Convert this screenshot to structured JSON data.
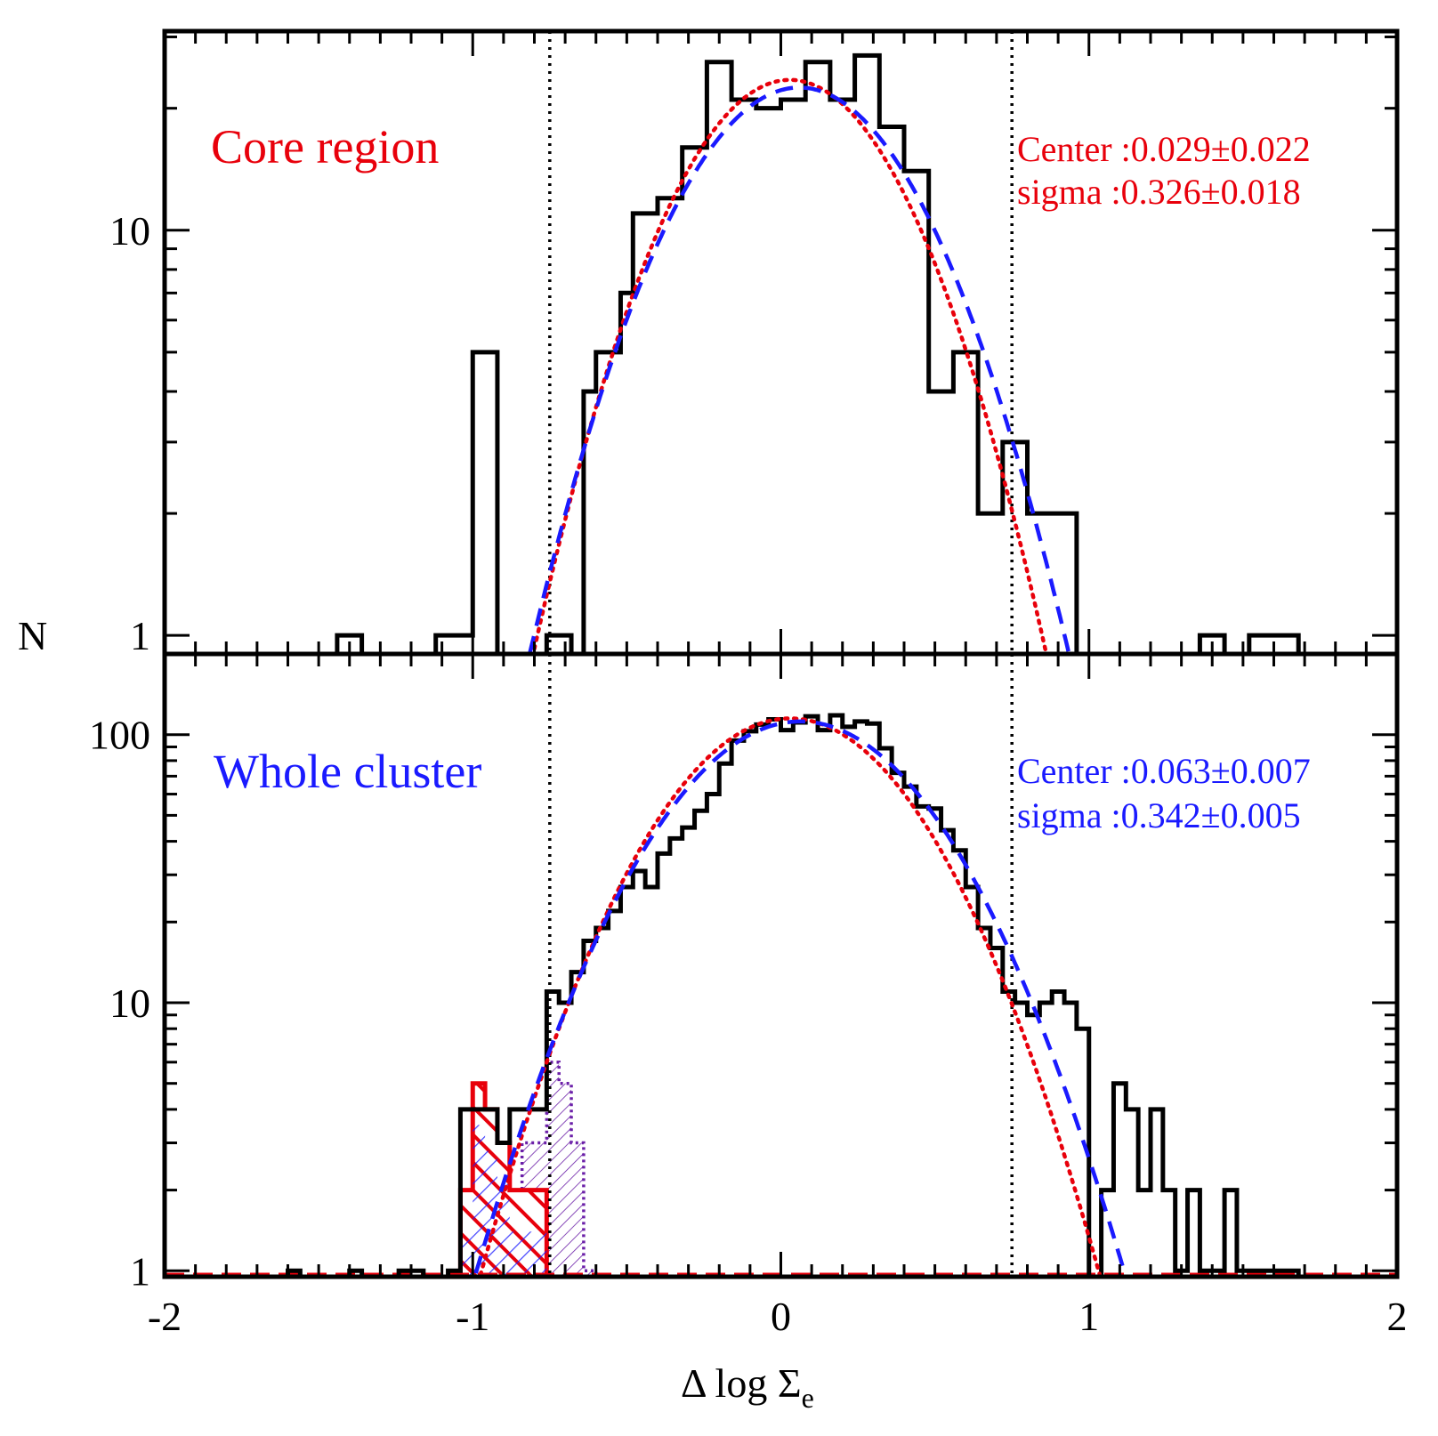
{
  "chart_data": [
    {
      "type": "histogram",
      "panel": "top",
      "title_label": "Core region",
      "title_color": "#e8000b",
      "stats": {
        "center_text": "Center :0.029±0.022",
        "sigma_text": "sigma :0.326±0.018",
        "color": "#e8000b"
      },
      "yscale": "log",
      "ylim": [
        0.9,
        31
      ],
      "yticks": [
        1,
        10
      ],
      "yticklabels": [
        "1",
        "10"
      ],
      "xlim": [
        -2,
        2
      ],
      "bin_width": 0.08,
      "vlines": [
        -0.75,
        0.75
      ],
      "histogram": {
        "edges": [
          -1.44,
          -1.36,
          -1.12,
          -1.0,
          -0.92,
          -0.76,
          -0.68,
          -0.64,
          -0.6,
          -0.56,
          -0.52,
          -0.48,
          -0.4,
          -0.32,
          -0.24,
          -0.16,
          -0.08,
          0.0,
          0.08,
          0.16,
          0.24,
          0.32,
          0.4,
          0.48,
          0.56,
          0.64,
          0.72,
          0.8,
          0.96
        ],
        "counts": [
          1,
          0,
          1,
          5,
          0,
          1,
          0,
          4,
          5,
          5,
          7,
          11,
          12,
          16,
          26,
          21,
          20,
          21,
          26,
          21,
          27,
          18,
          14,
          4,
          5,
          2,
          3,
          2
        ]
      },
      "extra_bins": [
        {
          "x0": 1.36,
          "x1": 1.44,
          "count": 1
        },
        {
          "x0": 1.52,
          "x1": 1.68,
          "count": 1
        }
      ],
      "fits": [
        {
          "name": "gaussian fit (dotted)",
          "style": "dotted",
          "color": "#e8000b",
          "amplitude": 23.5,
          "center": 0.029,
          "sigma": 0.326
        },
        {
          "name": "gaussian fit (dashed)",
          "style": "dashed",
          "color": "#1a1aff",
          "amplitude": 22.5,
          "center": 0.06,
          "sigma": 0.345
        }
      ]
    },
    {
      "type": "histogram",
      "panel": "bottom",
      "title_label": "Whole cluster",
      "title_color": "#1a1aff",
      "stats": {
        "center_text": "Center :0.063±0.007",
        "sigma_text": "sigma :0.342±0.005",
        "color": "#1a1aff"
      },
      "yscale": "log",
      "ylim": [
        0.95,
        200
      ],
      "yticks": [
        1,
        10,
        100
      ],
      "yticklabels": [
        "1",
        "10",
        "100"
      ],
      "xlim": [
        -2,
        2
      ],
      "xticks": [
        -2,
        -1,
        0,
        1,
        2
      ],
      "xticklabels": [
        "-2",
        "-1",
        "0",
        "1",
        "2"
      ],
      "xlabel": "Δ log Σ",
      "xlabel_subscript": "e",
      "ylabel": "N",
      "vlines": [
        -0.75,
        0.75
      ],
      "histogram": {
        "edges": [
          -1.6,
          -1.56,
          -1.4,
          -1.36,
          -1.24,
          -1.16,
          -1.08,
          -1.04,
          -1.0,
          -0.96,
          -0.92,
          -0.88,
          -0.84,
          -0.8,
          -0.76,
          -0.72,
          -0.68,
          -0.64,
          -0.6,
          -0.56,
          -0.52,
          -0.48,
          -0.44,
          -0.4,
          -0.36,
          -0.32,
          -0.28,
          -0.24,
          -0.2,
          -0.16,
          -0.12,
          -0.08,
          -0.04,
          0.0,
          0.04,
          0.08,
          0.12,
          0.16,
          0.2,
          0.24,
          0.28,
          0.32,
          0.36,
          0.4,
          0.44,
          0.48,
          0.52,
          0.56,
          0.6,
          0.64,
          0.68,
          0.72,
          0.76,
          0.8,
          0.84,
          0.88,
          0.92,
          0.96,
          1.0,
          1.04,
          1.08,
          1.12,
          1.16,
          1.2,
          1.24,
          1.28,
          1.32,
          1.36,
          1.4,
          1.44,
          1.48,
          1.52,
          1.56,
          1.64,
          1.68
        ],
        "counts": [
          1,
          0,
          1,
          0,
          1,
          0,
          1,
          4,
          4,
          4,
          3,
          4,
          4,
          4,
          11,
          10,
          13,
          17,
          19,
          22,
          27,
          31,
          27,
          36,
          41,
          45,
          52,
          60,
          78,
          95,
          103,
          109,
          114,
          104,
          111,
          117,
          104,
          118,
          107,
          112,
          110,
          89,
          72,
          64,
          54,
          53,
          44,
          37,
          27,
          19,
          16,
          11,
          10,
          9,
          10,
          11,
          10,
          8,
          0,
          2,
          5,
          4,
          2,
          4,
          2,
          1,
          2,
          1,
          1,
          2,
          1,
          1,
          1,
          1
        ]
      },
      "overlay_red_hatched": {
        "edges": [
          -1.04,
          -1.0,
          -0.96,
          -0.92,
          -0.88,
          -0.84,
          -0.8,
          -0.76
        ],
        "counts": [
          2,
          5,
          4,
          3,
          2,
          2,
          2
        ]
      },
      "overlay_purple_hatched": {
        "edges": [
          -0.84,
          -0.76,
          -0.72,
          -0.68,
          -0.64,
          -0.6
        ],
        "counts": [
          3,
          6,
          5,
          3,
          1
        ]
      },
      "fits": [
        {
          "name": "gaussian fit (dotted)",
          "style": "dotted",
          "color": "#e8000b",
          "amplitude": 115,
          "center": 0.03,
          "sigma": 0.325
        },
        {
          "name": "gaussian fit (dashed)",
          "style": "dashed",
          "color": "#1a1aff",
          "amplitude": 112,
          "center": 0.063,
          "sigma": 0.342
        }
      ]
    }
  ]
}
